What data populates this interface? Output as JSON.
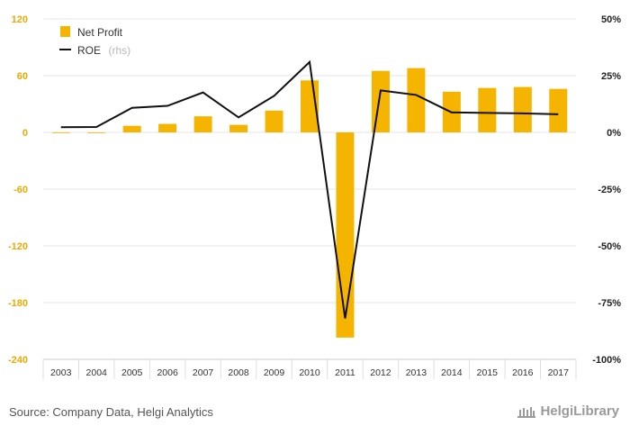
{
  "chart_data": {
    "type": "bar+line",
    "categories": [
      "2003",
      "2004",
      "2005",
      "2006",
      "2007",
      "2008",
      "2009",
      "2010",
      "2011",
      "2012",
      "2013",
      "2014",
      "2015",
      "2016",
      "2017"
    ],
    "series": [
      {
        "name": "Net Profit",
        "type": "bar",
        "axis": "left",
        "color": "#f5b400",
        "values": [
          -0.5,
          -0.6,
          7,
          9,
          17,
          8,
          23,
          55,
          -217,
          65,
          68,
          43,
          47,
          48,
          46
        ]
      },
      {
        "name": "ROE",
        "name_suffix": "(rhs)",
        "type": "line",
        "axis": "right",
        "color": "#111111",
        "values": [
          2.3,
          2.4,
          10.8,
          11.7,
          17.6,
          6.6,
          16.1,
          31,
          -82,
          18.5,
          16.5,
          8.8,
          8.6,
          8.4,
          8.0
        ]
      }
    ],
    "y_left": {
      "min": -240,
      "max": 120,
      "ticks": [
        "120",
        "60",
        "0",
        "-60",
        "-120",
        "-180",
        "-240"
      ],
      "color": "#f0a800"
    },
    "y_right": {
      "min": -100,
      "max": 50,
      "ticks": [
        "50%",
        "25%",
        "0%",
        "-25%",
        "-50%",
        "-75%",
        "-100%"
      ]
    },
    "grid": true,
    "legend_position": "top-left"
  },
  "footer": {
    "source": "Source: Company Data, Helgi Analytics",
    "brand": "HelgiLibrary"
  }
}
